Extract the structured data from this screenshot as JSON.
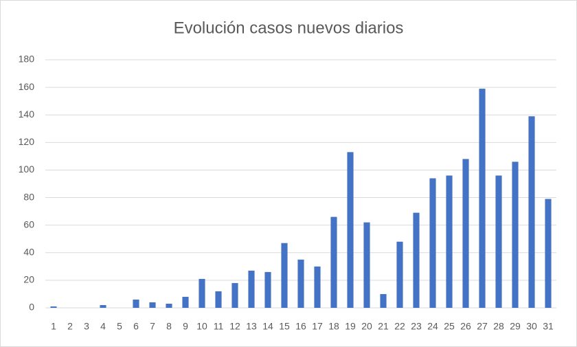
{
  "chart_data": {
    "type": "bar",
    "title": "Evolución  casos nuevos diarios",
    "categories": [
      "1",
      "2",
      "3",
      "4",
      "5",
      "6",
      "7",
      "8",
      "9",
      "10",
      "11",
      "12",
      "13",
      "14",
      "15",
      "16",
      "17",
      "18",
      "19",
      "20",
      "21",
      "22",
      "23",
      "24",
      "25",
      "26",
      "27",
      "28",
      "29",
      "30",
      "31"
    ],
    "values": [
      1,
      0,
      0,
      2,
      0,
      6,
      4,
      3,
      8,
      21,
      12,
      18,
      27,
      26,
      47,
      35,
      30,
      66,
      113,
      62,
      10,
      48,
      69,
      94,
      96,
      108,
      159,
      96,
      106,
      139,
      79
    ],
    "color": "#4472c4",
    "ylim": [
      0,
      180
    ],
    "yticks": [
      0,
      20,
      40,
      60,
      80,
      100,
      120,
      140,
      160,
      180
    ],
    "grid": true
  }
}
